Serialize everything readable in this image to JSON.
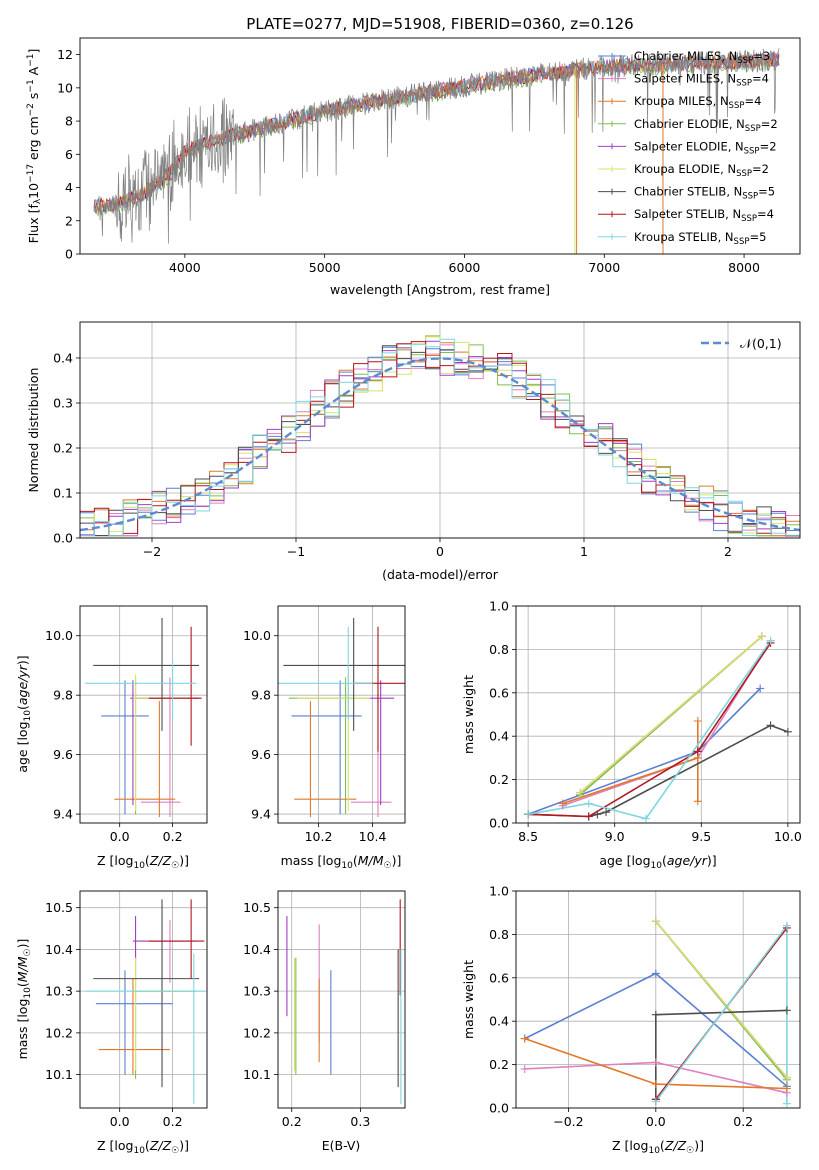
{
  "figure": {
    "title": "PLATE=0277, MJD=51908, FIBERID=0360, z=0.126"
  },
  "models": [
    {
      "key": "chab_miles",
      "label": "Chabrier MILES, N",
      "n": "=3",
      "color": "#5b7fd4"
    },
    {
      "key": "salp_miles",
      "label": "Salpeter MILES, N",
      "n": "=4",
      "color": "#e07fbf"
    },
    {
      "key": "krou_miles",
      "label": "Kroupa MILES, N",
      "n": "=4",
      "color": "#e07a2a"
    },
    {
      "key": "chab_elodie",
      "label": "Chabrier ELODIE, N",
      "n": "=2",
      "color": "#7fbf4f"
    },
    {
      "key": "salp_elodie",
      "label": "Salpeter ELODIE, N",
      "n": "=2",
      "color": "#a23fc4"
    },
    {
      "key": "krou_elodie",
      "label": "Kroupa ELODIE, N",
      "n": "=2",
      "color": "#d8e36a"
    },
    {
      "key": "chab_stelib",
      "label": "Chabrier STELIB, N",
      "n": "=5",
      "color": "#4d4d4d"
    },
    {
      "key": "salp_stelib",
      "label": "Salpeter STELIB, N",
      "n": "=4",
      "color": "#b3171f"
    },
    {
      "key": "krou_stelib",
      "label": "Kroupa STELIB, N",
      "n": "=5",
      "color": "#7fd6e0"
    }
  ],
  "legend_subscript": "SSP",
  "chart_data": [
    {
      "id": "spectrum",
      "type": "line",
      "xlabel": "wavelength [Angstrom, rest frame]",
      "ylabel": "Flux [f10 erg cm s A]",
      "xlim": [
        3250,
        8400
      ],
      "ylim": [
        0,
        13
      ],
      "xticks": [
        4000,
        5000,
        6000,
        7000,
        8000
      ],
      "yticks": [
        0,
        2,
        4,
        6,
        8,
        10,
        12
      ],
      "continuum": {
        "x": [
          3350,
          3500,
          3700,
          3900,
          4000,
          4200,
          4500,
          5000,
          5500,
          6000,
          6500,
          7000,
          7500,
          8000,
          8200
        ],
        "y": [
          2.9,
          3.0,
          3.6,
          4.9,
          6.2,
          6.8,
          7.5,
          8.6,
          9.4,
          10.1,
          10.8,
          11.3,
          11.4,
          11.6,
          11.7
        ]
      },
      "legend_location": "upper right",
      "grid": false
    },
    {
      "id": "residuals",
      "type": "line",
      "xlabel": "(data-model)/error",
      "ylabel": "Normed distribution",
      "xlim": [
        -2.5,
        2.5
      ],
      "ylim": [
        0,
        0.48
      ],
      "xticks": [
        -2,
        -1,
        0,
        1,
        2
      ],
      "yticks": [
        0.0,
        0.1,
        0.2,
        0.3,
        0.4
      ],
      "reference_curve": {
        "name": "𝒩(0,1)",
        "mean": 0,
        "sigma": 1
      },
      "legend_location": "upper right",
      "grid": true
    },
    {
      "id": "age_vs_Z",
      "type": "scatter",
      "xlabel": "Z [log10(Z/Z☉)]",
      "ylabel": "age  [log10(age/yr)]",
      "xlim": [
        -0.15,
        0.33
      ],
      "ylim": [
        9.37,
        10.1
      ],
      "xticks": [
        0.0,
        0.2
      ],
      "yticks": [
        9.4,
        9.6,
        9.8,
        10.0
      ],
      "points": [
        {
          "model": "chab_miles",
          "x": 0.02,
          "xerr": [
            0.09,
            0.09
          ],
          "y": 9.73,
          "yerr": [
            0.33,
            0.12
          ]
        },
        {
          "model": "salp_miles",
          "x": 0.19,
          "xerr": [
            0.11,
            0.04
          ],
          "y": 9.44,
          "yerr": [
            0.05,
            0.42
          ]
        },
        {
          "model": "krou_miles",
          "x": 0.15,
          "xerr": [
            0.17,
            0.06
          ],
          "y": 9.45,
          "yerr": [
            0.06,
            0.33
          ]
        },
        {
          "model": "chab_elodie",
          "x": 0.06,
          "xerr": [
            0.01,
            0.23
          ],
          "y": 9.79,
          "yerr": [
            0.39,
            0.07
          ]
        },
        {
          "model": "salp_elodie",
          "x": 0.05,
          "xerr": [
            0.01,
            0.25
          ],
          "y": 9.79,
          "yerr": [
            0.36,
            0.06
          ]
        },
        {
          "model": "krou_elodie",
          "x": 0.06,
          "xerr": [
            0.01,
            0.22
          ],
          "y": 9.79,
          "yerr": [
            0.38,
            0.08
          ]
        },
        {
          "model": "chab_stelib",
          "x": 0.16,
          "xerr": [
            0.26,
            0.14
          ],
          "y": 9.9,
          "yerr": [
            0.22,
            0.16
          ]
        },
        {
          "model": "salp_stelib",
          "x": 0.27,
          "xerr": [
            0.16,
            0.04
          ],
          "y": 9.79,
          "yerr": [
            0.16,
            0.24
          ]
        },
        {
          "model": "krou_stelib",
          "x": 0.2,
          "xerr": [
            0.33,
            0.09
          ],
          "y": 9.84,
          "yerr": [
            0.12,
            0.08
          ]
        }
      ]
    },
    {
      "id": "age_vs_mass",
      "type": "scatter",
      "xlabel": "mass [log10(M/M☉)]",
      "ylabel": "",
      "xlim": [
        10.05,
        10.52
      ],
      "ylim": [
        9.37,
        10.1
      ],
      "xticks": [
        10.2,
        10.4
      ],
      "yticks": [
        9.4,
        9.6,
        9.8,
        10.0
      ],
      "points": [
        {
          "model": "chab_miles",
          "x": 10.28,
          "xerr": [
            0.18,
            0.08
          ],
          "y": 9.73,
          "yerr": [
            0.33,
            0.12
          ]
        },
        {
          "model": "salp_miles",
          "x": 10.42,
          "xerr": [
            0.1,
            0.05
          ],
          "y": 9.44,
          "yerr": [
            0.05,
            0.42
          ]
        },
        {
          "model": "krou_miles",
          "x": 10.17,
          "xerr": [
            0.06,
            0.17
          ],
          "y": 9.45,
          "yerr": [
            0.06,
            0.33
          ]
        },
        {
          "model": "chab_elodie",
          "x": 10.3,
          "xerr": [
            0.21,
            0.09
          ],
          "y": 9.79,
          "yerr": [
            0.39,
            0.07
          ]
        },
        {
          "model": "salp_elodie",
          "x": 10.43,
          "xerr": [
            0.04,
            0.05
          ],
          "y": 9.79,
          "yerr": [
            0.36,
            0.06
          ]
        },
        {
          "model": "krou_elodie",
          "x": 10.31,
          "xerr": [
            0.19,
            0.08
          ],
          "y": 9.79,
          "yerr": [
            0.38,
            0.08
          ]
        },
        {
          "model": "chab_stelib",
          "x": 10.33,
          "xerr": [
            0.26,
            0.19
          ],
          "y": 9.9,
          "yerr": [
            0.22,
            0.16
          ]
        },
        {
          "model": "salp_stelib",
          "x": 10.42,
          "xerr": [
            0.09,
            0.1
          ],
          "y": 9.84,
          "yerr": [
            0.23,
            0.19
          ]
        },
        {
          "model": "krou_stelib",
          "x": 10.31,
          "xerr": [
            0.3,
            0.09
          ],
          "y": 9.84,
          "yerr": [
            0.12,
            0.19
          ]
        }
      ]
    },
    {
      "id": "weight_vs_age",
      "type": "line",
      "xlabel": "age  [log10(age/yr)]",
      "ylabel": "mass weight",
      "xlim": [
        8.43,
        10.07
      ],
      "ylim": [
        0,
        1
      ],
      "xticks": [
        8.5,
        9.0,
        9.5,
        10.0
      ],
      "yticks": [
        0.0,
        0.2,
        0.4,
        0.6,
        0.8,
        1.0
      ],
      "grid": true,
      "series": [
        {
          "model": "chab_miles",
          "x": [
            8.5,
            9.48,
            9.84
          ],
          "y": [
            0.04,
            0.33,
            0.62
          ]
        },
        {
          "model": "salp_miles",
          "x": [
            8.7,
            9.48,
            9.9
          ],
          "y": [
            0.08,
            0.3,
            0.84
          ]
        },
        {
          "model": "krou_miles",
          "x": [
            8.7,
            9.48,
            9.48,
            9.48
          ],
          "y": [
            0.09,
            0.3,
            0.1,
            0.47
          ]
        },
        {
          "model": "chab_elodie",
          "x": [
            8.8,
            9.85
          ],
          "y": [
            0.13,
            0.86
          ]
        },
        {
          "model": "salp_elodie",
          "x": [
            8.8,
            9.85
          ],
          "y": [
            0.14,
            0.86
          ]
        },
        {
          "model": "krou_elodie",
          "x": [
            8.8,
            9.85
          ],
          "y": [
            0.14,
            0.86
          ]
        },
        {
          "model": "chab_stelib",
          "x": [
            8.5,
            8.85,
            8.9,
            8.95,
            9.9,
            10.0
          ],
          "y": [
            0.04,
            0.03,
            0.04,
            0.05,
            0.45,
            0.42
          ]
        },
        {
          "model": "salp_stelib",
          "x": [
            8.5,
            8.85,
            9.48,
            9.9
          ],
          "y": [
            0.04,
            0.03,
            0.33,
            0.83
          ]
        },
        {
          "model": "krou_stelib",
          "x": [
            8.5,
            8.85,
            9.18,
            9.9
          ],
          "y": [
            0.04,
            0.09,
            0.02,
            0.84
          ]
        }
      ]
    },
    {
      "id": "mass_vs_Z",
      "type": "scatter",
      "xlabel": "Z [log10(Z/Z☉)]",
      "ylabel": "mass [log10(M/M☉)]",
      "xlim": [
        -0.15,
        0.33
      ],
      "ylim": [
        10.02,
        10.54
      ],
      "xticks": [
        0.0,
        0.2
      ],
      "yticks": [
        10.1,
        10.2,
        10.3,
        10.4,
        10.5
      ],
      "points": [
        {
          "model": "chab_miles",
          "x": 0.02,
          "xerr": [
            0.11,
            0.18
          ],
          "y": 10.27,
          "yerr": [
            0.17,
            0.08
          ]
        },
        {
          "model": "salp_miles",
          "x": 0.19,
          "xerr": [
            0.11,
            0.04
          ],
          "y": 10.42,
          "yerr": [
            0.1,
            0.05
          ]
        },
        {
          "model": "krou_miles",
          "x": 0.05,
          "xerr": [
            0.13,
            0.14
          ],
          "y": 10.16,
          "yerr": [
            0.06,
            0.17
          ]
        },
        {
          "model": "chab_elodie",
          "x": 0.06,
          "xerr": [
            0.01,
            0.23
          ],
          "y": 10.3,
          "yerr": [
            0.21,
            0.09
          ]
        },
        {
          "model": "salp_elodie",
          "x": 0.06,
          "xerr": [
            0.01,
            0.23
          ],
          "y": 10.42,
          "yerr": [
            0.04,
            0.06
          ]
        },
        {
          "model": "krou_elodie",
          "x": 0.06,
          "xerr": [
            0.01,
            0.22
          ],
          "y": 10.3,
          "yerr": [
            0.19,
            0.08
          ]
        },
        {
          "model": "chab_stelib",
          "x": 0.16,
          "xerr": [
            0.26,
            0.14
          ],
          "y": 10.33,
          "yerr": [
            0.26,
            0.19
          ]
        },
        {
          "model": "salp_stelib",
          "x": 0.27,
          "xerr": [
            0.16,
            0.05
          ],
          "y": 10.42,
          "yerr": [
            0.09,
            0.1
          ]
        },
        {
          "model": "krou_stelib",
          "x": 0.28,
          "xerr": [
            0.41,
            0.04
          ],
          "y": 10.3,
          "yerr": [
            0.27,
            0.09
          ]
        }
      ]
    },
    {
      "id": "mass_vs_ebv",
      "type": "scatter",
      "xlabel": "E(B-V)",
      "ylabel": "",
      "xlim": [
        0.18,
        0.365
      ],
      "ylim": [
        10.02,
        10.54
      ],
      "xticks": [
        0.2,
        0.3
      ],
      "yticks": [
        10.1,
        10.2,
        10.3,
        10.4,
        10.5
      ],
      "points": [
        {
          "model": "chab_miles",
          "x": 0.257,
          "y": 10.25,
          "yerr": [
            0.15,
            0.1
          ]
        },
        {
          "model": "salp_miles",
          "x": 0.24,
          "y": 10.34,
          "yerr": [
            0.16,
            0.12
          ]
        },
        {
          "model": "krou_miles",
          "x": 0.24,
          "y": 10.23,
          "yerr": [
            0.1,
            0.1
          ]
        },
        {
          "model": "chab_elodie",
          "x": 0.206,
          "y": 10.25,
          "yerr": [
            0.15,
            0.13
          ]
        },
        {
          "model": "salp_elodie",
          "x": 0.193,
          "y": 10.34,
          "yerr": [
            0.1,
            0.14
          ]
        },
        {
          "model": "krou_elodie",
          "x": 0.204,
          "y": 10.25,
          "yerr": [
            0.14,
            0.13
          ]
        },
        {
          "model": "chab_stelib",
          "x": 0.355,
          "y": 10.3,
          "yerr": [
            0.23,
            0.1
          ]
        },
        {
          "model": "salp_stelib",
          "x": 0.358,
          "y": 10.4,
          "yerr": [
            0.11,
            0.12
          ]
        },
        {
          "model": "krou_stelib",
          "x": 0.359,
          "y": 10.3,
          "yerr": [
            0.27,
            0.1
          ]
        }
      ]
    },
    {
      "id": "weight_vs_Z",
      "type": "line",
      "xlabel": "Z [log10(Z/Z☉)]",
      "ylabel": "mass weight",
      "xlim": [
        -0.32,
        0.33
      ],
      "ylim": [
        0,
        1
      ],
      "xticks": [
        -0.2,
        0.0,
        0.2
      ],
      "yticks": [
        0.0,
        0.2,
        0.4,
        0.6,
        0.8,
        1.0
      ],
      "grid": true,
      "series": [
        {
          "model": "chab_miles",
          "x": [
            -0.3,
            0.0,
            0.3
          ],
          "y": [
            0.32,
            0.62,
            0.1
          ]
        },
        {
          "model": "salp_miles",
          "x": [
            -0.3,
            0.0,
            0.3
          ],
          "y": [
            0.18,
            0.21,
            0.07
          ]
        },
        {
          "model": "krou_miles",
          "x": [
            -0.3,
            0.0,
            0.3
          ],
          "y": [
            0.32,
            0.11,
            0.09
          ]
        },
        {
          "model": "chab_elodie",
          "x": [
            0.0,
            0.3
          ],
          "y": [
            0.86,
            0.13
          ]
        },
        {
          "model": "salp_elodie",
          "x": [
            0.0,
            0.3
          ],
          "y": [
            0.86,
            0.14
          ]
        },
        {
          "model": "krou_elodie",
          "x": [
            0.0,
            0.3
          ],
          "y": [
            0.86,
            0.14
          ]
        },
        {
          "model": "chab_stelib",
          "x": [
            0.0,
            0.0,
            0.3
          ],
          "y": [
            0.04,
            0.43,
            0.45
          ]
        },
        {
          "model": "salp_stelib",
          "x": [
            0.0,
            0.0,
            0.3
          ],
          "y": [
            0.03,
            0.04,
            0.83
          ]
        },
        {
          "model": "krou_stelib",
          "x": [
            0.0,
            0.3,
            0.3
          ],
          "y": [
            0.03,
            0.84,
            0.02
          ]
        }
      ]
    }
  ]
}
